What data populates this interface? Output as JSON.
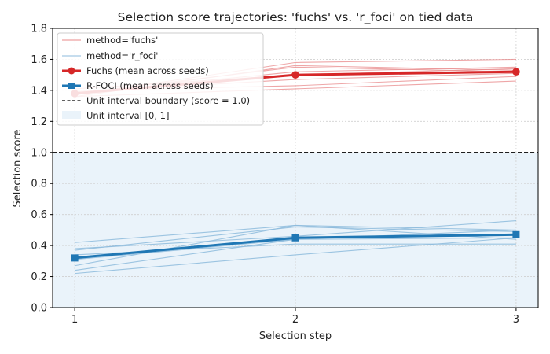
{
  "chart_data": {
    "type": "line",
    "title": "Selection score trajectories: 'fuchs' vs. 'r_foci' on tied data",
    "xlabel": "Selection step",
    "ylabel": "Selection score",
    "x": [
      1,
      2,
      3
    ],
    "xlim": [
      0.9,
      3.1
    ],
    "ylim": [
      0.0,
      1.8
    ],
    "yticks": [
      0.0,
      0.2,
      0.4,
      0.6,
      0.8,
      1.0,
      1.2,
      1.4,
      1.6,
      1.8
    ],
    "xticks": [
      1,
      2,
      3
    ],
    "grid": true,
    "legend_position": "top-left",
    "colors": {
      "fuchs": "#d62728",
      "fuchs_thin": "#e8888a",
      "rfoci": "#1f77b4",
      "rfoci_thin": "#8dbbdc",
      "band": "#eaf3fa",
      "boundary": "#000000"
    },
    "fuchs_seeds": [
      [
        1.36,
        1.56,
        1.53
      ],
      [
        1.37,
        1.58,
        1.6
      ],
      [
        1.38,
        1.52,
        1.55
      ],
      [
        1.39,
        1.47,
        1.51
      ],
      [
        1.4,
        1.43,
        1.49
      ],
      [
        1.36,
        1.41,
        1.46
      ],
      [
        1.38,
        1.55,
        1.52
      ],
      [
        1.41,
        1.5,
        1.54
      ]
    ],
    "rfoci_seeds": [
      [
        0.42,
        0.53,
        0.5
      ],
      [
        0.37,
        0.52,
        0.49
      ],
      [
        0.31,
        0.44,
        0.45
      ],
      [
        0.27,
        0.53,
        0.44
      ],
      [
        0.24,
        0.44,
        0.5
      ],
      [
        0.22,
        0.34,
        0.45
      ],
      [
        0.34,
        0.41,
        0.41
      ],
      [
        0.38,
        0.46,
        0.56
      ]
    ],
    "series": [
      {
        "name": "Fuchs (mean across seeds)",
        "values": [
          1.38,
          1.5,
          1.52
        ]
      },
      {
        "name": "R-FOCI (mean across seeds)",
        "values": [
          0.32,
          0.45,
          0.47
        ]
      }
    ],
    "boundary_value": 1.0,
    "band_range": [
      0.0,
      1.0
    ],
    "legend": {
      "seed_fuchs": "method='fuchs'",
      "seed_rfoci": "method='r_foci'",
      "mean_fuchs": "Fuchs (mean across seeds)",
      "mean_rfoci": "R-FOCI (mean across seeds)",
      "boundary": "Unit interval boundary (score = 1.0)",
      "band": "Unit interval [0, 1]"
    }
  }
}
